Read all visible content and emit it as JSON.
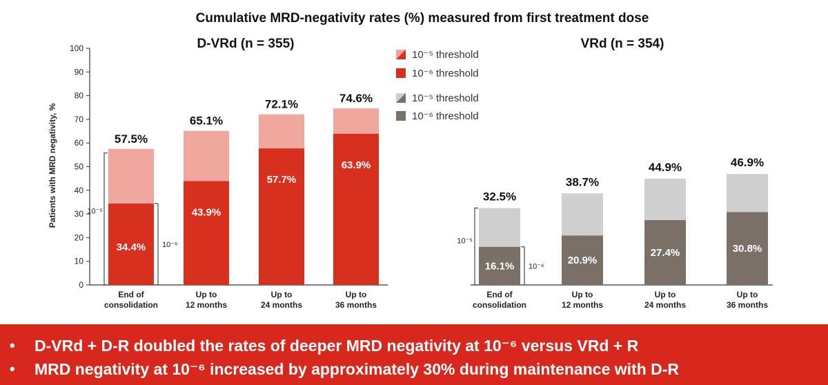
{
  "colors": {
    "dvrd_10_6": "#d8301f",
    "dvrd_10_5": "#f0a79d",
    "vrd_10_6": "#7b7068",
    "vrd_10_5": "#cfcfcf",
    "banner": "#d8281e",
    "axis": "#333333"
  },
  "chart_data": {
    "type": "bar",
    "title": "Cumulative MRD-negativity rates (%) measured from first treatment dose",
    "ylabel": "Patients with MRD negativity, %",
    "ylim": [
      0,
      100
    ],
    "yticks": [
      "0",
      "10",
      "20",
      "30",
      "40",
      "50",
      "60",
      "70",
      "80",
      "90",
      "100"
    ],
    "categories": [
      {
        "line1": "End of",
        "line2": "consolidation"
      },
      {
        "line1": "Up to",
        "line2": "12 months"
      },
      {
        "line1": "Up to",
        "line2": "24 months"
      },
      {
        "line1": "Up to",
        "line2": "36 months"
      }
    ],
    "legend": {
      "dvrd": {
        "label_10_5": "10⁻⁵ threshold",
        "label_10_6": "10⁻⁶ threshold"
      },
      "vrd": {
        "label_10_5": "10⁻⁵ threshold",
        "label_10_6": "10⁻⁶ threshold"
      }
    },
    "panels": [
      {
        "title": "D-VRd (n = 355)",
        "threshold_10_6": [
          34.4,
          43.9,
          57.7,
          63.9
        ],
        "threshold_10_5": [
          57.5,
          65.1,
          72.1,
          74.6
        ],
        "labels_10_6": [
          "34.4%",
          "43.9%",
          "57.7%",
          "63.9%"
        ],
        "labels_10_5": [
          "57.5%",
          "65.1%",
          "72.1%",
          "74.6%"
        ],
        "bracket_10_5": "10⁻⁵",
        "bracket_10_6": "10⁻⁶"
      },
      {
        "title": "VRd (n = 354)",
        "threshold_10_6": [
          16.1,
          20.9,
          27.4,
          30.8
        ],
        "threshold_10_5": [
          32.5,
          38.7,
          44.9,
          46.9
        ],
        "labels_10_6": [
          "16.1%",
          "20.9%",
          "27.4%",
          "30.8%"
        ],
        "labels_10_5": [
          "32.5%",
          "38.7%",
          "44.9%",
          "46.9%"
        ],
        "bracket_10_5": "10⁻⁵",
        "bracket_10_6": "10⁻⁶"
      }
    ]
  },
  "banner": {
    "bullet": "•",
    "line1": "D-VRd + D-R doubled the rates of deeper MRD negativity at 10⁻⁶ versus VRd + R",
    "line2": "MRD negativity at 10⁻⁶ increased by approximately 30% during maintenance with D-R"
  }
}
